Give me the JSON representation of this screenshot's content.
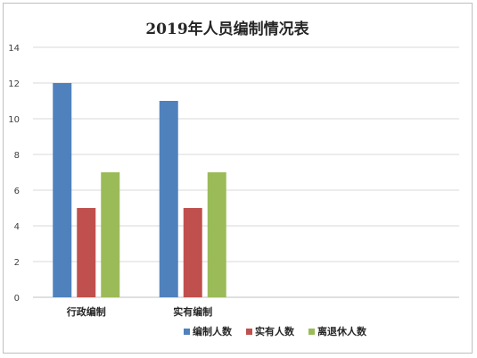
{
  "chart_data": {
    "type": "bar",
    "title": "2019年人员编制情况表",
    "categories": [
      "行政编制",
      "实有编制",
      "",
      ""
    ],
    "series": [
      {
        "name": "编制人数",
        "color": "#4f81bd",
        "values": [
          12,
          11,
          null,
          null
        ]
      },
      {
        "name": "实有人数",
        "color": "#c0504d",
        "values": [
          5,
          5,
          null,
          null
        ]
      },
      {
        "name": "离退休人数",
        "color": "#9bbb59",
        "values": [
          7,
          7,
          null,
          null
        ]
      }
    ],
    "ylim": [
      0,
      14
    ],
    "yticks": [
      0,
      2,
      4,
      6,
      8,
      10,
      12,
      14
    ],
    "grid": true,
    "legend_position": "bottom"
  }
}
